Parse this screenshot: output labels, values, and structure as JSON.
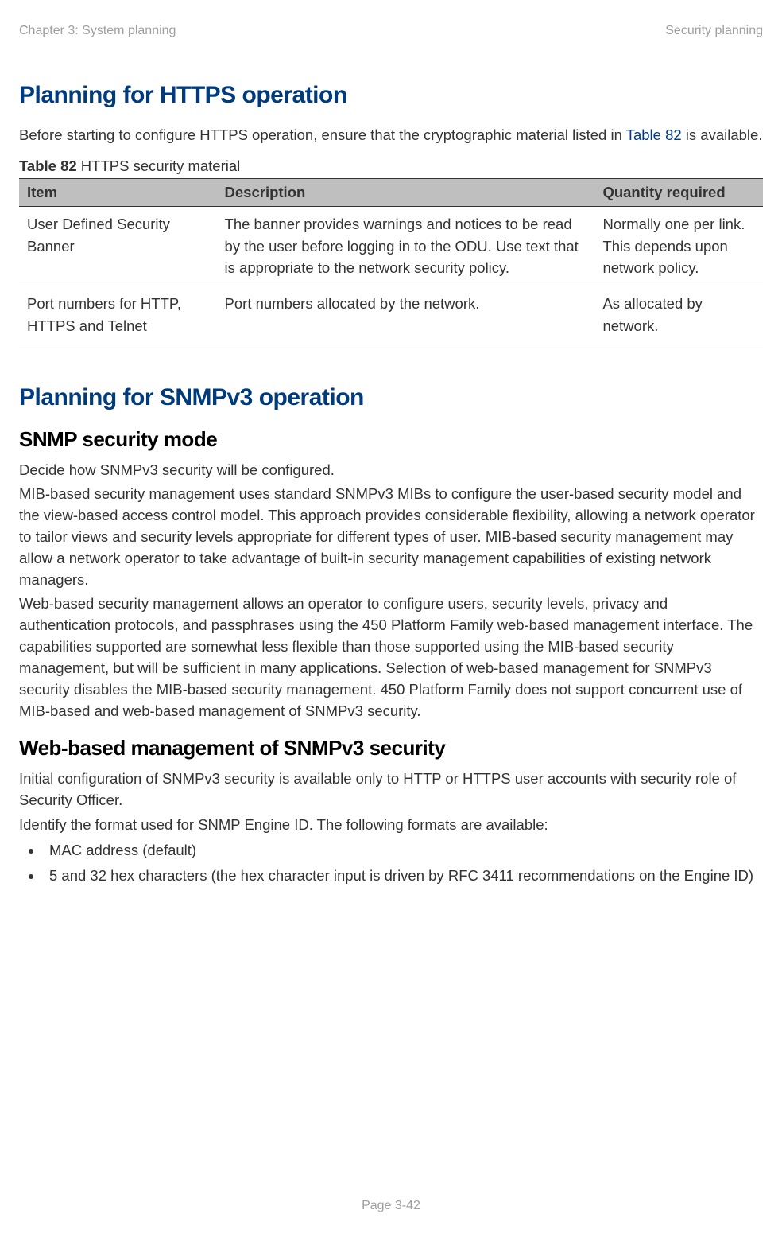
{
  "header": {
    "left": "Chapter 3:  System planning",
    "right": "Security planning"
  },
  "section1": {
    "title": "Planning for HTTPS operation",
    "intro_part1": "Before starting to configure HTTPS operation, ensure that the cryptographic material listed in ",
    "intro_link": "Table 82",
    "intro_part2": " is available.",
    "table_caption_bold": "Table 82",
    "table_caption_rest": " HTTPS security material",
    "columns": [
      "Item",
      "Description",
      "Quantity required"
    ],
    "rows": [
      {
        "item": "User Defined Security Banner",
        "description": "The banner provides warnings and notices to be read by the user before logging in to the ODU. Use text that is appropriate to the network security policy.",
        "qty": "Normally one per link. This depends upon network policy."
      },
      {
        "item": "Port numbers for HTTP, HTTPS and Telnet",
        "description": "Port numbers allocated by the network.",
        "qty": "As allocated by network."
      }
    ]
  },
  "section2": {
    "title": "Planning for SNMPv3 operation",
    "sub1_title": "SNMP security mode",
    "sub1_p1": "Decide how SNMPv3 security will be configured.",
    "sub1_p2": "MIB-based security management uses standard SNMPv3 MIBs to configure the user-based security model and the view-based access control model. This approach provides considerable flexibility, allowing a network operator to tailor views and security levels appropriate for different types of user. MIB-based security management may allow a network operator to take advantage of built-in security management capabilities of existing network managers.",
    "sub1_p3": "Web-based security management allows an operator to configure users, security levels, privacy and authentication protocols, and passphrases using the 450 Platform Family web-based management interface. The capabilities supported are somewhat less flexible than those supported using the MIB-based security management, but will be sufficient in many applications. Selection of web-based management for SNMPv3 security disables the MIB-based security management. 450 Platform Family does not support concurrent use of MIB-based and web-based management of SNMPv3 security.",
    "sub2_title": "Web-based management of SNMPv3 security",
    "sub2_p1": "Initial configuration of SNMPv3 security is available only to HTTP or HTTPS user accounts with security role of Security Officer.",
    "sub2_p2": "Identify the format used for SNMP Engine ID. The following formats are available:",
    "bullets": [
      "MAC address (default)",
      "5 and 32 hex characters (the hex character input is driven by RFC 3411 recommendations on the Engine ID)"
    ]
  },
  "footer": "Page 3-42"
}
